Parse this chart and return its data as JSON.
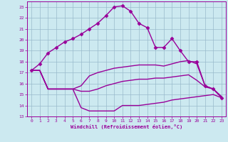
{
  "xlabel": "Windchill (Refroidissement éolien,°C)",
  "bg_color": "#cce9f0",
  "line_color": "#990099",
  "grid_color": "#99bbcc",
  "xlim": [
    -0.5,
    23.5
  ],
  "ylim": [
    13,
    23.5
  ],
  "xticks": [
    0,
    1,
    2,
    3,
    4,
    5,
    6,
    7,
    8,
    9,
    10,
    11,
    12,
    13,
    14,
    15,
    16,
    17,
    18,
    19,
    20,
    21,
    22,
    23
  ],
  "yticks": [
    13,
    14,
    15,
    16,
    17,
    18,
    19,
    20,
    21,
    22,
    23
  ],
  "series": [
    {
      "x": [
        0,
        1,
        2,
        3,
        4,
        5,
        6,
        7,
        8,
        9,
        10,
        11,
        12,
        13,
        14,
        15,
        16,
        17,
        18,
        19,
        20,
        21,
        22,
        23
      ],
      "y": [
        17.2,
        17.8,
        18.8,
        19.3,
        19.8,
        20.1,
        20.5,
        21.0,
        21.5,
        22.2,
        23.0,
        23.1,
        22.6,
        21.5,
        21.1,
        19.3,
        19.3,
        20.1,
        19.0,
        18.0,
        18.0,
        15.8,
        15.5,
        14.7
      ],
      "marker": "D",
      "markersize": 2.5,
      "linewidth": 1.0
    },
    {
      "x": [
        0,
        1,
        2,
        3,
        4,
        5,
        6,
        7,
        8,
        9,
        10,
        11,
        12,
        13,
        14,
        15,
        16,
        17,
        18,
        19,
        20,
        21,
        22,
        23
      ],
      "y": [
        17.2,
        17.2,
        15.5,
        15.5,
        15.5,
        15.5,
        15.8,
        16.7,
        17.0,
        17.2,
        17.4,
        17.5,
        17.6,
        17.7,
        17.7,
        17.7,
        17.6,
        17.8,
        18.0,
        18.1,
        17.8,
        15.8,
        15.5,
        14.8
      ],
      "marker": null,
      "markersize": 0,
      "linewidth": 1.0
    },
    {
      "x": [
        0,
        1,
        2,
        3,
        4,
        5,
        6,
        7,
        8,
        9,
        10,
        11,
        12,
        13,
        14,
        15,
        16,
        17,
        18,
        19,
        20,
        21,
        22,
        23
      ],
      "y": [
        17.2,
        17.2,
        15.5,
        15.5,
        15.5,
        15.5,
        15.3,
        15.3,
        15.5,
        15.8,
        16.0,
        16.2,
        16.3,
        16.4,
        16.4,
        16.5,
        16.5,
        16.6,
        16.7,
        16.8,
        16.3,
        15.7,
        15.5,
        14.8
      ],
      "marker": null,
      "markersize": 0,
      "linewidth": 1.0
    },
    {
      "x": [
        0,
        1,
        2,
        3,
        4,
        5,
        6,
        7,
        8,
        9,
        10,
        11,
        12,
        13,
        14,
        15,
        16,
        17,
        18,
        19,
        20,
        21,
        22,
        23
      ],
      "y": [
        17.2,
        17.2,
        15.5,
        15.5,
        15.5,
        15.5,
        13.8,
        13.5,
        13.5,
        13.5,
        13.5,
        14.0,
        14.0,
        14.0,
        14.1,
        14.2,
        14.3,
        14.5,
        14.6,
        14.7,
        14.8,
        14.9,
        15.0,
        14.7
      ],
      "marker": null,
      "markersize": 0,
      "linewidth": 1.0
    }
  ]
}
